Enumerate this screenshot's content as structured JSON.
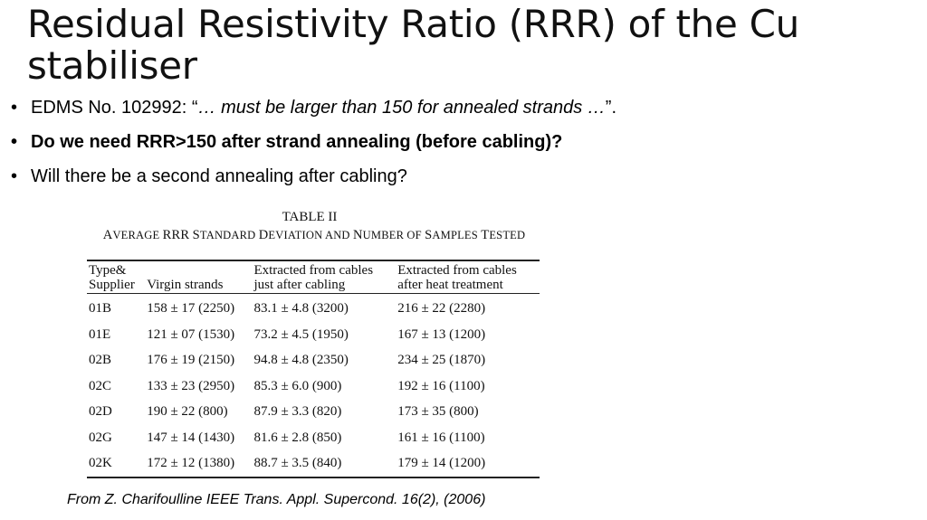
{
  "title": "Residual Resistivity Ratio (RRR) of the Cu stabiliser",
  "bullets": [
    {
      "prefix": "EDMS No. 102992: “",
      "quote": "… must be larger than 150 for annealed strands …",
      "suffix": "”."
    },
    {
      "text": "Do we need RRR>150 after strand annealing (before cabling)?"
    },
    {
      "text": "Will there be a second annealing after cabling?"
    }
  ],
  "bullet_glyph": "•",
  "table": {
    "caption_number": "TABLE II",
    "caption_title": [
      {
        "cap": "A",
        "rest": "VERAGE"
      },
      {
        "cap": "RRR",
        "rest": ""
      },
      {
        "cap": "S",
        "rest": "TANDARD"
      },
      {
        "cap": "D",
        "rest": "EVIATION AND"
      },
      {
        "cap": "N",
        "rest": "UMBER OF"
      },
      {
        "cap": "S",
        "rest": "AMPLES"
      },
      {
        "cap": "T",
        "rest": "ESTED"
      }
    ],
    "headers": [
      [
        "Type&",
        "Supplier"
      ],
      [
        "Virgin strands"
      ],
      [
        "Extracted from cables",
        "just after cabling"
      ],
      [
        "Extracted from cables",
        "after heat treatment"
      ]
    ],
    "rows": [
      [
        "01B",
        "158 ± 17 (2250)",
        "83.1 ± 4.8  (3200)",
        "216 ± 22  (2280)"
      ],
      [
        "01E",
        "121 ± 07 (1530)",
        "73.2 ± 4.5  (1950)",
        "167 ± 13  (1200)"
      ],
      [
        "02B",
        "176 ± 19 (2150)",
        "94.8 ± 4.8  (2350)",
        "234 ± 25  (1870)"
      ],
      [
        "02C",
        "133 ± 23 (2950)",
        "85.3 ± 6.0  (900)",
        "192 ± 16  (1100)"
      ],
      [
        "02D",
        "190 ± 22 (800)",
        "87.9 ± 3.3  (820)",
        "173 ± 35  (800)"
      ],
      [
        "02G",
        "147 ± 14 (1430)",
        "81.6 ± 2.8  (850)",
        "161 ± 16  (1100)"
      ],
      [
        "02K",
        "172 ± 12 (1380)",
        "88.7 ± 3.5  (840)",
        "179 ± 14  (1200)"
      ]
    ]
  },
  "citation": "From Z. Charifoulline IEEE Trans. Appl. Supercond. 16(2), (2006)"
}
